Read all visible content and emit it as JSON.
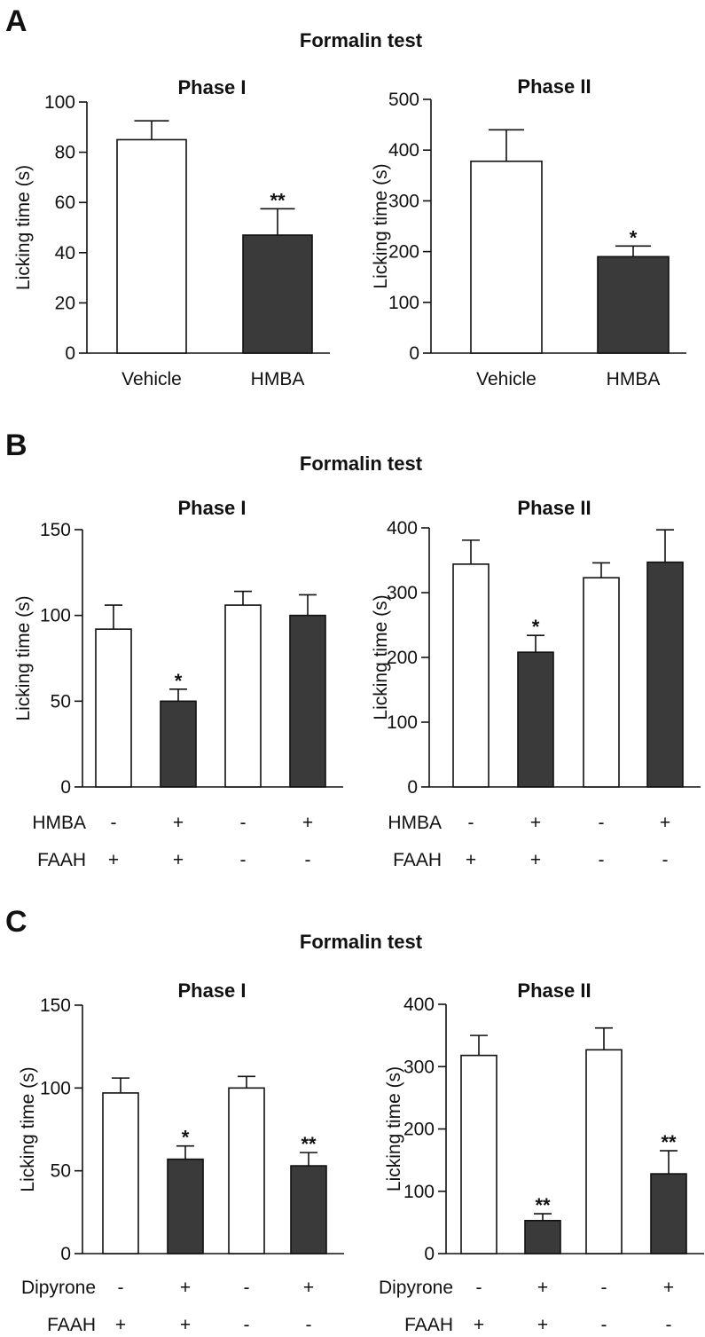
{
  "colors": {
    "control_fill": "#ffffff",
    "treated_fill": "#3a3a3a",
    "stroke": "#111111"
  },
  "panels": [
    {
      "letter": "A",
      "title": "Formalin test"
    },
    {
      "letter": "B",
      "title": "Formalin test"
    },
    {
      "letter": "C",
      "title": "Formalin test"
    }
  ],
  "chart_data": [
    {
      "type": "bar",
      "panel": "A",
      "title": "Phase I",
      "ylabel": "Licking time (s)",
      "ylim": [
        0,
        100
      ],
      "yticks": [
        0,
        20,
        40,
        60,
        80,
        100
      ],
      "categories": [
        "Vehicle",
        "HMBA"
      ],
      "values": [
        85,
        47
      ],
      "errors": [
        7.5,
        10.5
      ],
      "fills": [
        "control",
        "treated"
      ],
      "significance": [
        "",
        "**"
      ]
    },
    {
      "type": "bar",
      "panel": "A",
      "title": "Phase II",
      "ylabel": "Licking time (s)",
      "ylim": [
        0,
        500
      ],
      "yticks": [
        0,
        100,
        200,
        300,
        400,
        500
      ],
      "categories": [
        "Vehicle",
        "HMBA"
      ],
      "values": [
        378,
        190
      ],
      "errors": [
        62,
        21
      ],
      "fills": [
        "control",
        "treated"
      ],
      "significance": [
        "",
        "*"
      ]
    },
    {
      "type": "bar",
      "panel": "B",
      "title": "Phase I",
      "ylabel": "Licking time (s)",
      "ylim": [
        0,
        150
      ],
      "yticks": [
        0,
        50,
        100,
        150
      ],
      "values": [
        92,
        50,
        106,
        100
      ],
      "errors": [
        14,
        7,
        8,
        12
      ],
      "fills": [
        "control",
        "treated",
        "control",
        "treated"
      ],
      "significance": [
        "",
        "*",
        "",
        ""
      ],
      "conditions": [
        {
          "label": "HMBA",
          "values": [
            "-",
            "+",
            "-",
            "+"
          ]
        },
        {
          "label": "FAAH",
          "values": [
            "+",
            "+",
            "-",
            "-"
          ]
        }
      ]
    },
    {
      "type": "bar",
      "panel": "B",
      "title": "Phase II",
      "ylabel": "Licking time (s)",
      "ylim": [
        0,
        400
      ],
      "yticks": [
        0,
        100,
        200,
        300,
        400
      ],
      "values": [
        344,
        208,
        323,
        347
      ],
      "errors": [
        37,
        26,
        23,
        50
      ],
      "fills": [
        "control",
        "treated",
        "control",
        "treated"
      ],
      "significance": [
        "",
        "*",
        "",
        ""
      ],
      "conditions": [
        {
          "label": "HMBA",
          "values": [
            "-",
            "+",
            "-",
            "+"
          ]
        },
        {
          "label": "FAAH",
          "values": [
            "+",
            "+",
            "-",
            "-"
          ]
        }
      ]
    },
    {
      "type": "bar",
      "panel": "C",
      "title": "Phase I",
      "ylabel": "Licking time (s)",
      "ylim": [
        0,
        150
      ],
      "yticks": [
        0,
        50,
        100,
        150
      ],
      "values": [
        97,
        57,
        100,
        53
      ],
      "errors": [
        9,
        8,
        7,
        8
      ],
      "fills": [
        "control",
        "treated",
        "control",
        "treated"
      ],
      "significance": [
        "",
        "*",
        "",
        "**"
      ],
      "conditions": [
        {
          "label": "Dipyrone",
          "values": [
            "-",
            "+",
            "-",
            "+"
          ]
        },
        {
          "label": "FAAH",
          "values": [
            "+",
            "+",
            "-",
            "-"
          ]
        }
      ]
    },
    {
      "type": "bar",
      "panel": "C",
      "title": "Phase II",
      "ylabel": "Licking time (s)",
      "ylim": [
        0,
        400
      ],
      "yticks": [
        0,
        100,
        200,
        300,
        400
      ],
      "values": [
        318,
        53,
        327,
        128
      ],
      "errors": [
        32,
        11,
        35,
        37
      ],
      "fills": [
        "control",
        "treated",
        "control",
        "treated"
      ],
      "significance": [
        "",
        "**",
        "",
        "**"
      ],
      "conditions": [
        {
          "label": "Dipyrone",
          "values": [
            "-",
            "+",
            "-",
            "+"
          ]
        },
        {
          "label": "FAAH",
          "values": [
            "+",
            "+",
            "-",
            "-"
          ]
        }
      ]
    }
  ]
}
